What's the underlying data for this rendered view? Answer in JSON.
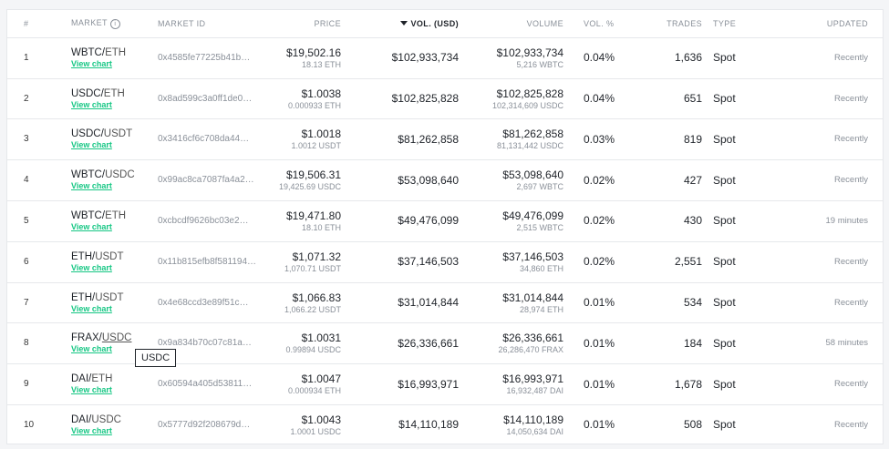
{
  "headers": {
    "num": "#",
    "market": "MARKET",
    "market_id": "MARKET ID",
    "price": "PRICE",
    "vol_usd": "VOL. (USD)",
    "volume": "VOLUME",
    "vol_pct": "VOL. %",
    "trades": "TRADES",
    "type": "TYPE",
    "updated": "UPDATED"
  },
  "tooltip": "USDC",
  "rows": [
    {
      "num": "1",
      "base": "WBTC",
      "quote": "ETH",
      "view": "View chart",
      "id": "0x4585fe77225b41b…",
      "price": "$19,502.16",
      "price_sub": "18.13 ETH",
      "vol_usd": "$102,933,734",
      "volume": "$102,933,734",
      "volume_sub": "5,216 WBTC",
      "vol_pct": "0.04%",
      "trades": "1,636",
      "type": "Spot",
      "updated": "Recently"
    },
    {
      "num": "2",
      "base": "USDC",
      "quote": "ETH",
      "view": "View chart",
      "id": "0x8ad599c3a0ff1de0…",
      "price": "$1.0038",
      "price_sub": "0.000933 ETH",
      "vol_usd": "$102,825,828",
      "volume": "$102,825,828",
      "volume_sub": "102,314,609 USDC",
      "vol_pct": "0.04%",
      "trades": "651",
      "type": "Spot",
      "updated": "Recently"
    },
    {
      "num": "3",
      "base": "USDC",
      "quote": "USDT",
      "view": "View chart",
      "id": "0x3416cf6c708da44…",
      "price": "$1.0018",
      "price_sub": "1.0012 USDT",
      "vol_usd": "$81,262,858",
      "volume": "$81,262,858",
      "volume_sub": "81,131,442 USDC",
      "vol_pct": "0.03%",
      "trades": "819",
      "type": "Spot",
      "updated": "Recently"
    },
    {
      "num": "4",
      "base": "WBTC",
      "quote": "USDC",
      "view": "View chart",
      "id": "0x99ac8ca7087fa4a2…",
      "price": "$19,506.31",
      "price_sub": "19,425.69 USDC",
      "vol_usd": "$53,098,640",
      "volume": "$53,098,640",
      "volume_sub": "2,697 WBTC",
      "vol_pct": "0.02%",
      "trades": "427",
      "type": "Spot",
      "updated": "Recently"
    },
    {
      "num": "5",
      "base": "WBTC",
      "quote": "ETH",
      "view": "View chart",
      "id": "0xcbcdf9626bc03e2…",
      "price": "$19,471.80",
      "price_sub": "18.10 ETH",
      "vol_usd": "$49,476,099",
      "volume": "$49,476,099",
      "volume_sub": "2,515 WBTC",
      "vol_pct": "0.02%",
      "trades": "430",
      "type": "Spot",
      "updated": "19 minutes"
    },
    {
      "num": "6",
      "base": "ETH",
      "quote": "USDT",
      "view": "View chart",
      "id": "0x11b815efb8f581194…",
      "price": "$1,071.32",
      "price_sub": "1,070.71 USDT",
      "vol_usd": "$37,146,503",
      "volume": "$37,146,503",
      "volume_sub": "34,860 ETH",
      "vol_pct": "0.02%",
      "trades": "2,551",
      "type": "Spot",
      "updated": "Recently"
    },
    {
      "num": "7",
      "base": "ETH",
      "quote": "USDT",
      "view": "View chart",
      "id": "0x4e68ccd3e89f51c…",
      "price": "$1,066.83",
      "price_sub": "1,066.22 USDT",
      "vol_usd": "$31,014,844",
      "volume": "$31,014,844",
      "volume_sub": "28,974 ETH",
      "vol_pct": "0.01%",
      "trades": "534",
      "type": "Spot",
      "updated": "Recently"
    },
    {
      "num": "8",
      "base": "FRAX",
      "quote": "USDC",
      "view": "View chart",
      "id": "0x9a834b70c07c81a…",
      "price": "$1.0031",
      "price_sub": "0.99894 USDC",
      "vol_usd": "$26,336,661",
      "volume": "$26,336,661",
      "volume_sub": "26,286,470 FRAX",
      "vol_pct": "0.01%",
      "trades": "184",
      "type": "Spot",
      "updated": "58 minutes"
    },
    {
      "num": "9",
      "base": "DAI",
      "quote": "ETH",
      "view": "View chart",
      "id": "0x60594a405d53811…",
      "price": "$1.0047",
      "price_sub": "0.000934 ETH",
      "vol_usd": "$16,993,971",
      "volume": "$16,993,971",
      "volume_sub": "16,932,487 DAI",
      "vol_pct": "0.01%",
      "trades": "1,678",
      "type": "Spot",
      "updated": "Recently"
    },
    {
      "num": "10",
      "base": "DAI",
      "quote": "USDC",
      "view": "View chart",
      "id": "0x5777d92f208679d…",
      "price": "$1.0043",
      "price_sub": "1.0001 USDC",
      "vol_usd": "$14,110,189",
      "volume": "$14,110,189",
      "volume_sub": "14,050,634 DAI",
      "vol_pct": "0.01%",
      "trades": "508",
      "type": "Spot",
      "updated": "Recently"
    }
  ]
}
